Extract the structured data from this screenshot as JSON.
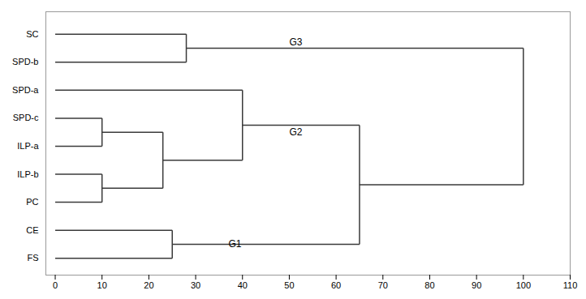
{
  "chart_data": {
    "type": "dendrogram",
    "color": "#3a3a3a",
    "xlim": [
      -2,
      110
    ],
    "xticks": [
      0,
      10,
      20,
      30,
      40,
      50,
      60,
      70,
      80,
      90,
      100,
      110
    ],
    "ylim": [
      -0.6,
      8.8
    ],
    "yticks": [
      {
        "value": 8,
        "label": "SC"
      },
      {
        "value": 7,
        "label": "SPD-b"
      },
      {
        "value": 6,
        "label": "SPD-a"
      },
      {
        "value": 5,
        "label": "SPD-c"
      },
      {
        "value": 4,
        "label": "ILP-a"
      },
      {
        "value": 3,
        "label": "ILP-b"
      },
      {
        "value": 2,
        "label": "PC"
      },
      {
        "value": 1,
        "label": "CE"
      },
      {
        "value": 0,
        "label": "FS"
      }
    ],
    "grid": false,
    "tree": {
      "x": 100,
      "children": [
        {
          "x": 28,
          "children": [
            "SC",
            "SPD-b"
          ]
        },
        {
          "x": 65,
          "children": [
            {
              "x": 40,
              "children": [
                "SPD-a",
                {
                  "x": 23,
                  "children": [
                    {
                      "x": 10,
                      "children": [
                        "SPD-c",
                        "ILP-a"
                      ]
                    },
                    {
                      "x": 10,
                      "children": [
                        "ILP-b",
                        "PC"
                      ]
                    }
                  ]
                }
              ]
            },
            {
              "x": 25,
              "children": [
                "CE",
                "FS"
              ]
            }
          ]
        }
      ]
    },
    "annotations": [
      {
        "text": "G1",
        "x": 37,
        "y": 0.5
      },
      {
        "text": "G2",
        "x": 50,
        "y": 4.5
      },
      {
        "text": "G3",
        "x": 50,
        "y": 7.7
      }
    ]
  }
}
